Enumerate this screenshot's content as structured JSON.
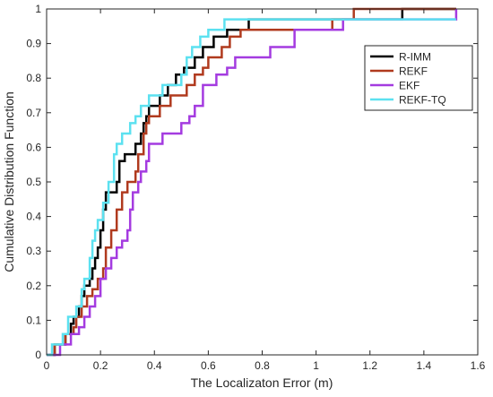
{
  "chart_data": {
    "type": "line",
    "title": "",
    "xlabel": "The Localizaton Error (m)",
    "ylabel": "Cumulative Distribution Function",
    "xlim": [
      0,
      1.6
    ],
    "ylim": [
      0,
      1
    ],
    "x_ticks": [
      "0",
      "0.2",
      "0.4",
      "0.6",
      "0.8",
      "1",
      "1.2",
      "1.4",
      "1.6"
    ],
    "y_ticks": [
      "0",
      "0.1",
      "0.2",
      "0.3",
      "0.4",
      "0.5",
      "0.6",
      "0.7",
      "0.8",
      "0.9",
      "1"
    ],
    "grid": false,
    "legend_position": "top-right",
    "step": true,
    "series": [
      {
        "name": "R-IMM",
        "color": "#000000",
        "x": [
          0,
          0.03,
          0.07,
          0.09,
          0.1,
          0.12,
          0.13,
          0.14,
          0.16,
          0.17,
          0.18,
          0.19,
          0.2,
          0.21,
          0.22,
          0.26,
          0.27,
          0.29,
          0.33,
          0.35,
          0.36,
          0.37,
          0.38,
          0.42,
          0.45,
          0.48,
          0.51,
          0.55,
          0.58,
          0.6,
          0.62,
          0.65,
          0.67,
          0.7,
          0.72,
          0.75,
          0.9,
          1.32,
          1.52
        ],
        "y": [
          0,
          0.03,
          0.06,
          0.09,
          0.11,
          0.14,
          0.17,
          0.2,
          0.22,
          0.25,
          0.28,
          0.31,
          0.36,
          0.42,
          0.47,
          0.5,
          0.56,
          0.58,
          0.61,
          0.64,
          0.67,
          0.69,
          0.72,
          0.75,
          0.78,
          0.81,
          0.83,
          0.86,
          0.89,
          0.89,
          0.92,
          0.92,
          0.94,
          0.94,
          0.94,
          0.97,
          0.97,
          1.0,
          1.0
        ]
      },
      {
        "name": "REKF",
        "color": "#b03a1e",
        "x": [
          0,
          0.03,
          0.07,
          0.1,
          0.11,
          0.13,
          0.15,
          0.17,
          0.19,
          0.21,
          0.22,
          0.24,
          0.26,
          0.28,
          0.3,
          0.33,
          0.34,
          0.36,
          0.37,
          0.38,
          0.42,
          0.46,
          0.5,
          0.52,
          0.55,
          0.58,
          0.6,
          0.63,
          0.65,
          0.68,
          0.72,
          0.8,
          1.06,
          1.14,
          1.52
        ],
        "y": [
          0,
          0.03,
          0.06,
          0.08,
          0.11,
          0.14,
          0.17,
          0.19,
          0.22,
          0.25,
          0.31,
          0.36,
          0.42,
          0.47,
          0.5,
          0.53,
          0.58,
          0.64,
          0.67,
          0.69,
          0.72,
          0.75,
          0.75,
          0.78,
          0.81,
          0.83,
          0.86,
          0.86,
          0.89,
          0.92,
          0.94,
          0.94,
          0.97,
          1.0,
          1.0
        ]
      },
      {
        "name": "EKF",
        "color": "#a43be0",
        "x": [
          0,
          0.05,
          0.09,
          0.12,
          0.14,
          0.16,
          0.18,
          0.2,
          0.22,
          0.24,
          0.26,
          0.28,
          0.3,
          0.31,
          0.32,
          0.34,
          0.35,
          0.37,
          0.38,
          0.43,
          0.5,
          0.53,
          0.55,
          0.58,
          0.63,
          0.67,
          0.7,
          0.83,
          0.92,
          1.1,
          1.52
        ],
        "y": [
          0,
          0.03,
          0.06,
          0.08,
          0.11,
          0.14,
          0.17,
          0.22,
          0.25,
          0.28,
          0.31,
          0.33,
          0.36,
          0.42,
          0.47,
          0.5,
          0.53,
          0.56,
          0.61,
          0.64,
          0.67,
          0.69,
          0.72,
          0.78,
          0.81,
          0.83,
          0.86,
          0.89,
          0.94,
          0.97,
          1.0
        ]
      },
      {
        "name": "REKF-TQ",
        "color": "#5ce1f0",
        "x": [
          0,
          0.02,
          0.06,
          0.08,
          0.11,
          0.13,
          0.14,
          0.16,
          0.17,
          0.18,
          0.19,
          0.21,
          0.23,
          0.25,
          0.26,
          0.28,
          0.31,
          0.33,
          0.35,
          0.38,
          0.4,
          0.43,
          0.47,
          0.5,
          0.52,
          0.54,
          0.57,
          0.6,
          0.63,
          0.66,
          1.13,
          1.52
        ],
        "y": [
          0,
          0.03,
          0.06,
          0.11,
          0.14,
          0.19,
          0.22,
          0.28,
          0.33,
          0.36,
          0.39,
          0.44,
          0.5,
          0.58,
          0.61,
          0.64,
          0.67,
          0.69,
          0.72,
          0.75,
          0.75,
          0.78,
          0.78,
          0.81,
          0.86,
          0.89,
          0.92,
          0.94,
          0.94,
          0.97,
          0.97,
          0.97
        ]
      }
    ]
  }
}
